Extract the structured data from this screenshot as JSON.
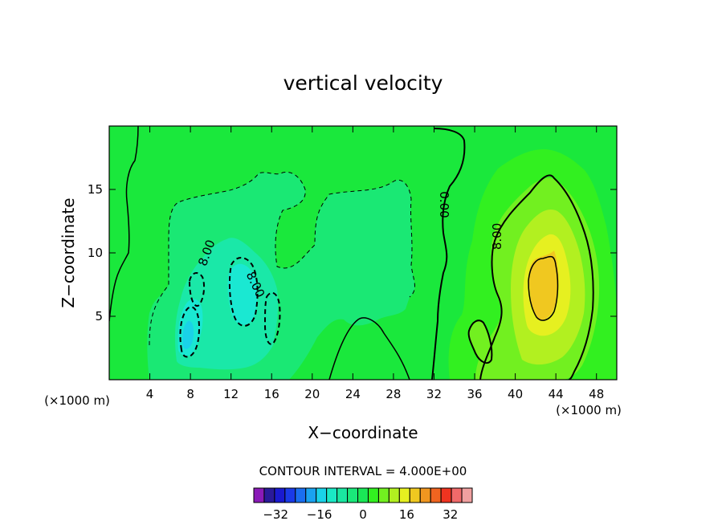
{
  "chart_data": {
    "type": "contour",
    "title": "vertical velocity",
    "xlabel": "X−coordinate",
    "ylabel": "Z−coordinate",
    "x_unit": "(×1000 m)",
    "y_unit": "(×1000 m)",
    "xlim": [
      0,
      50
    ],
    "ylim": [
      0,
      20
    ],
    "xticks": [
      4,
      8,
      12,
      16,
      20,
      24,
      28,
      32,
      36,
      40,
      44,
      48
    ],
    "yticks": [
      5,
      10,
      15
    ],
    "contour_interval_text": "CONTOUR INTERVAL = 4.000E+00",
    "contour_interval": 4,
    "contour_labels": [
      {
        "text": "8.00",
        "x": 9.6,
        "y": 10.0,
        "rotation": -70
      },
      {
        "text": "8.00",
        "x": 14.4,
        "y": 7.5,
        "rotation": 65
      },
      {
        "text": "0.00",
        "x": 33.0,
        "y": 13.8,
        "rotation": 90
      },
      {
        "text": "8.00",
        "x": 38.2,
        "y": 11.3,
        "rotation": -90
      }
    ],
    "field_features": [
      {
        "kind": "updraft",
        "x": 42.8,
        "z": 7.8,
        "peak": 24
      },
      {
        "kind": "updraft",
        "x": 42.0,
        "z": 8.5,
        "peak": 16
      },
      {
        "kind": "updraft",
        "x": 41.5,
        "z": 10.0,
        "peak": 12
      },
      {
        "kind": "updraft",
        "x": 40.5,
        "z": 11.0,
        "peak": 8
      },
      {
        "kind": "updraft",
        "x": 39.5,
        "z": 12.0,
        "peak": 4
      },
      {
        "kind": "updraft",
        "x": 35.5,
        "z": 3.0,
        "peak": 6
      },
      {
        "kind": "downdraft",
        "x": 7.8,
        "z": 3.5,
        "peak": -10
      },
      {
        "kind": "downdraft",
        "x": 13.0,
        "z": 6.5,
        "peak": -6
      },
      {
        "kind": "downdraft",
        "x": 14.5,
        "z": 6.8,
        "peak": -8
      },
      {
        "kind": "downdraft",
        "x": 10.0,
        "z": 4.5,
        "peak": -6
      },
      {
        "kind": "downdraft",
        "x": 17.0,
        "z": 9.0,
        "peak": -3
      },
      {
        "kind": "downdraft",
        "x": 24.5,
        "z": 11.5,
        "peak": -3
      }
    ],
    "colorbar": {
      "levels": [
        -40,
        -36,
        -32,
        -28,
        -24,
        -20,
        -16,
        -12,
        -8,
        -4,
        0,
        4,
        8,
        12,
        16,
        20,
        24,
        28,
        32,
        36,
        40
      ],
      "colors": [
        "#8a1ab8",
        "#2a1a9a",
        "#1a1ad0",
        "#1a3ae8",
        "#1a6ef0",
        "#1aa2f0",
        "#1ad2e8",
        "#1ae8c4",
        "#1ae6a0",
        "#1ae87a",
        "#1ae856",
        "#32f020",
        "#72f020",
        "#b2f020",
        "#e6f020",
        "#f0c820",
        "#f09620",
        "#f06420",
        "#f03420",
        "#f06a6a",
        "#f0a0a0"
      ],
      "tick_values": [
        -32,
        -16,
        0,
        16,
        32
      ],
      "tick_labels": [
        "−32",
        "−16",
        "0",
        "16",
        "32"
      ]
    }
  }
}
